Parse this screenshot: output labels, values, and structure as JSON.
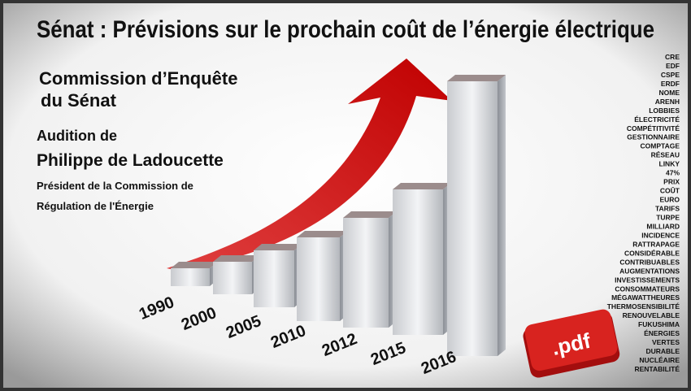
{
  "title": "Sénat : Prévisions sur le prochain coût de l’énergie électrique",
  "commission": [
    "Commission d’Enquête",
    "du Sénat"
  ],
  "audition": {
    "intro": "Audition de",
    "name": "Philippe de Ladoucette",
    "role": [
      "Président de la Commission de",
      "Régulation de l'Énergie"
    ]
  },
  "years": [
    "1990",
    "2000",
    "2005",
    "2010",
    "2012",
    "2015",
    "2016"
  ],
  "keywords": [
    "CRE",
    "EDF",
    "CSPE",
    "ERDF",
    "NOME",
    "ARENH",
    "LOBBIES",
    "ÉLECTRICITÉ",
    "COMPÉTITIVITÉ",
    "GESTIONNAIRE",
    "COMPTAGE",
    "RÉSEAU",
    "LINKY",
    "47%",
    "PRIX",
    "COÛT",
    "EURO",
    "TARIFS",
    "TURPE",
    "MILLIARD",
    "INCIDENCE",
    "RATTRAPAGE",
    "CONSIDÉRABLE",
    "CONTRIBUABLES",
    "AUGMENTATIONS",
    "INVESTISSEMENTS",
    "CONSOMMATEURS",
    "MÉGAWATTHEURES",
    "THERMOSENSIBILITÉ",
    "RENOUVELABLE",
    "FUKUSHIMA",
    "ÉNERGIES",
    "VERTES",
    "DURABLE",
    "NUCLÉAIRE",
    "RENTABILITÉ"
  ],
  "pdf_label": ".pdf"
}
